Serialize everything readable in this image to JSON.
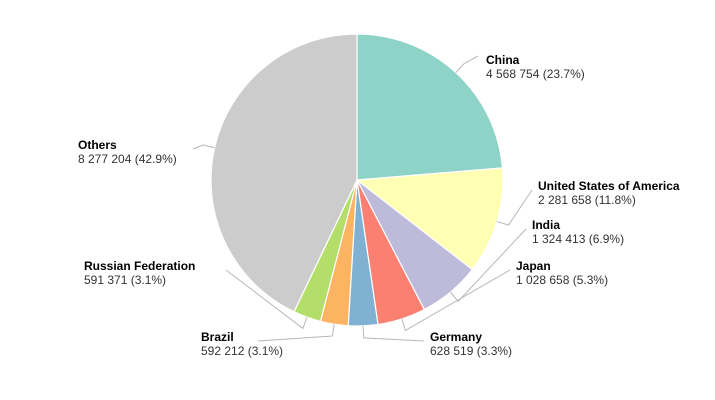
{
  "chart_data": {
    "type": "pie",
    "title": "",
    "slices": [
      {
        "name": "China",
        "value": 4568754,
        "value_label": "4 568 754 (23.7%)",
        "color": "#8dd3c7"
      },
      {
        "name": "United States of America",
        "value": 2281658,
        "value_label": "2 281 658 (11.8%)",
        "color": "#ffffb3"
      },
      {
        "name": "India",
        "value": 1324413,
        "value_label": "1 324 413 (6.9%)",
        "color": "#bebada"
      },
      {
        "name": "Japan",
        "value": 1028658,
        "value_label": "1 028 658 (5.3%)",
        "color": "#fb8072"
      },
      {
        "name": "Germany",
        "value": 628519,
        "value_label": "628 519 (3.3%)",
        "color": "#80b1d3"
      },
      {
        "name": "Brazil",
        "value": 592212,
        "value_label": "592 212 (3.1%)",
        "color": "#fdb462"
      },
      {
        "name": "Russian Federation",
        "value": 591371,
        "value_label": "591 371 (3.1%)",
        "color": "#b3de69"
      },
      {
        "name": "Others",
        "value": 8277204,
        "value_label": "8 277 204 (42.9%)",
        "color": "#cccccc"
      }
    ]
  }
}
